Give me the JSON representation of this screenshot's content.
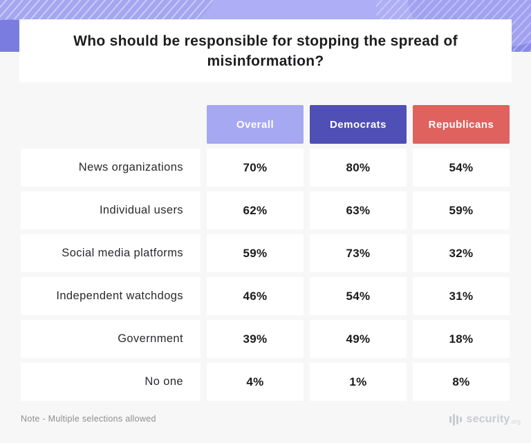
{
  "title": "Who should be responsible for stopping the spread of misinformation?",
  "note": "Note - Multiple selections allowed",
  "brand": {
    "name": "security",
    "tld": ".org"
  },
  "colors": {
    "band_purple": "#8789ea",
    "background": "#f7f7f8",
    "overall_chip": "#a7a8f2",
    "democrats_chip": "#504fb6",
    "republicans_chip": "#df625f",
    "cell_white": "#ffffff",
    "text_dark": "#1d1d20",
    "note_gray": "#8e8e90"
  },
  "table": {
    "header": {
      "overall": "Overall",
      "democrats": "Democrats",
      "republicans": "Republicans"
    },
    "rows": [
      {
        "label": "News organizations",
        "overall": "70%",
        "democrats": "80%",
        "republicans": "54%"
      },
      {
        "label": "Individual users",
        "overall": "62%",
        "democrats": "63%",
        "republicans": "59%"
      },
      {
        "label": "Social media platforms",
        "overall": "59%",
        "democrats": "73%",
        "republicans": "32%"
      },
      {
        "label": "Independent watchdogs",
        "overall": "46%",
        "democrats": "54%",
        "republicans": "31%"
      },
      {
        "label": "Government",
        "overall": "39%",
        "democrats": "49%",
        "republicans": "18%"
      },
      {
        "label": "No one",
        "overall": "4%",
        "democrats": "1%",
        "republicans": "8%"
      }
    ]
  },
  "chart_data": {
    "type": "table",
    "title": "Who should be responsible for stopping the spread of misinformation?",
    "categories": [
      "News organizations",
      "Individual users",
      "Social media platforms",
      "Independent watchdogs",
      "Government",
      "No one"
    ],
    "series": [
      {
        "name": "Overall",
        "values": [
          70,
          62,
          59,
          46,
          39,
          4
        ]
      },
      {
        "name": "Democrats",
        "values": [
          80,
          63,
          73,
          54,
          49,
          1
        ]
      },
      {
        "name": "Republicans",
        "values": [
          54,
          59,
          32,
          31,
          18,
          8
        ]
      }
    ],
    "unit": "%",
    "note": "Note - Multiple selections allowed",
    "legend_position": "top",
    "grid": false
  }
}
